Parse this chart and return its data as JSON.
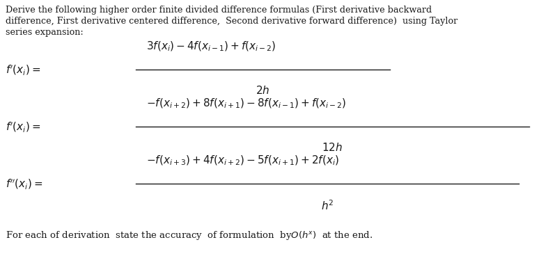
{
  "background_color": "#ffffff",
  "figsize": [
    7.97,
    3.68
  ],
  "dpi": 100,
  "text_color": "#1a1a1a",
  "header_line1": "Derive the following higher order finite divided difference formulas (First derivative backward",
  "header_line2": "difference, First derivative centered difference,  Second derivative forward difference)  using Taylor",
  "header_line3": "series expansion:",
  "header_fontsize": 9.2,
  "formula_fontsize": 11.0,
  "footer_fontsize": 9.5
}
